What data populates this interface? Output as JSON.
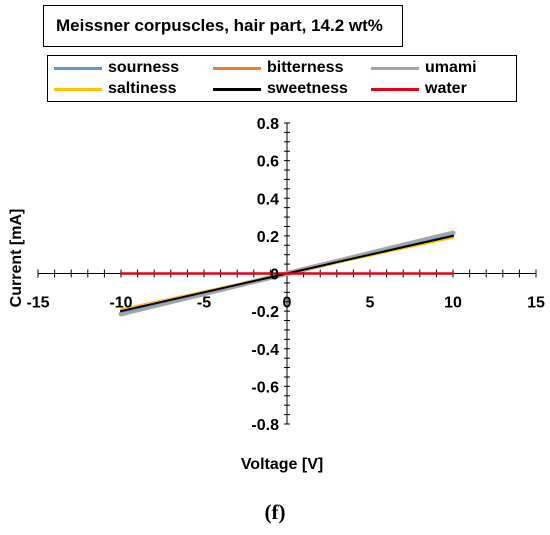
{
  "chart_data": {
    "type": "line",
    "title": "Meissner corpuscles, hair part, 14.2 wt%",
    "xlabel": "Voltage  [V]",
    "ylabel": "Current  [mA]",
    "xlim": [
      -15,
      15
    ],
    "ylim": [
      -0.8,
      0.8
    ],
    "x_ticks": [
      "-15",
      "-10",
      "-5",
      "0",
      "5",
      "10",
      "15"
    ],
    "y_ticks": [
      "0.8",
      "0.6",
      "0.4",
      "0.2",
      "0",
      "-0.2",
      "-0.4",
      "-0.6",
      "-0.8"
    ],
    "grid": false,
    "legend_position": "top",
    "series": [
      {
        "name": "sourness",
        "color": "#5b9bd5",
        "x": [
          -10,
          10
        ],
        "y": [
          -0.205,
          0.205
        ]
      },
      {
        "name": "bitterness",
        "color": "#ed7d31",
        "x": [
          -10,
          10
        ],
        "y": [
          -0.195,
          0.195
        ]
      },
      {
        "name": "umami",
        "color": "#a5a5a5",
        "x": [
          -10,
          10
        ],
        "y": [
          -0.215,
          0.215
        ]
      },
      {
        "name": "saltiness",
        "color": "#ffc000",
        "x": [
          -10,
          10
        ],
        "y": [
          -0.19,
          0.19
        ]
      },
      {
        "name": "sweetness",
        "color": "#000000",
        "x": [
          -10,
          10
        ],
        "y": [
          -0.2,
          0.2
        ]
      },
      {
        "name": "water",
        "color": "#e3001b",
        "x": [
          -10,
          10
        ],
        "y": [
          0.0,
          0.0
        ]
      }
    ]
  },
  "caption": "(f)"
}
